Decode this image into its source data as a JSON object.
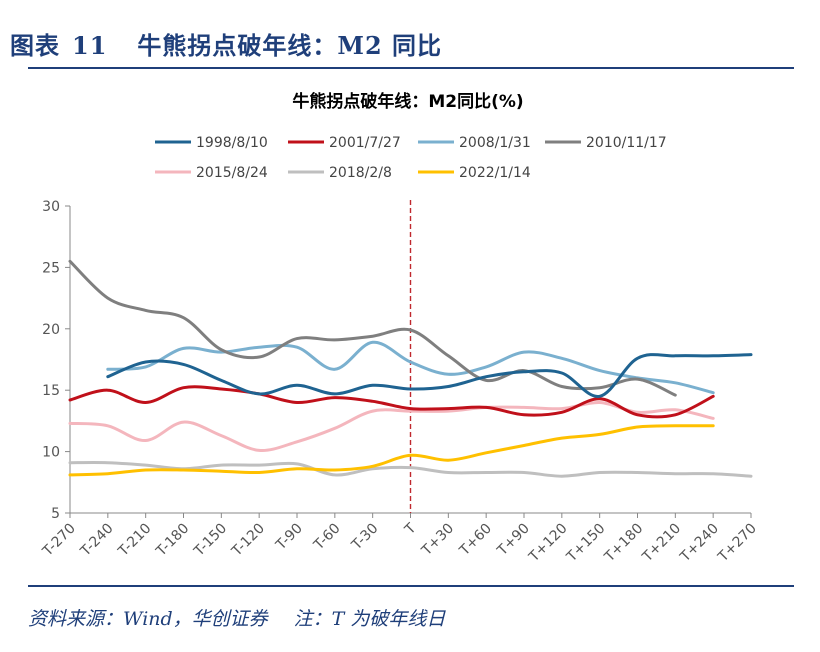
{
  "figure": {
    "label": "图表",
    "number": "11",
    "title": "牛熊拐点破年线：M2 同比"
  },
  "footer": {
    "source": "资料来源：Wind，华创证券",
    "note": "注：T 为破年线日"
  },
  "colors": {
    "accent": "#1f3f7a",
    "marker_line": "#c0282e"
  },
  "chart_data": {
    "type": "line",
    "title": "牛熊拐点破年线：M2同比(%)",
    "categories": [
      "T-270",
      "T-240",
      "T-210",
      "T-180",
      "T-150",
      "T-120",
      "T-90",
      "T-60",
      "T-30",
      "T",
      "T+30",
      "T+60",
      "T+90",
      "T+120",
      "T+150",
      "T+180",
      "T+210",
      "T+240",
      "T+270"
    ],
    "ylim": [
      5,
      30
    ],
    "yticks": [
      5,
      10,
      15,
      20,
      25,
      30
    ],
    "vertical_marker": "T",
    "legend_position": "top",
    "grid": false,
    "series": [
      {
        "name": "1998/8/10",
        "color": "#1f6391",
        "values": [
          null,
          16.1,
          17.3,
          17.1,
          15.8,
          14.7,
          15.4,
          14.7,
          15.4,
          15.1,
          15.3,
          16.1,
          16.5,
          16.4,
          14.5,
          17.6,
          17.8,
          17.8,
          17.9
        ]
      },
      {
        "name": "2001/7/27",
        "color": "#c0101a",
        "values": [
          14.2,
          15.0,
          14.0,
          15.2,
          15.1,
          14.7,
          14.0,
          14.4,
          14.1,
          13.5,
          13.5,
          13.6,
          13.0,
          13.2,
          14.3,
          13.0,
          13.0,
          14.5,
          null
        ]
      },
      {
        "name": "2008/1/31",
        "color": "#7ab0cf",
        "values": [
          null,
          16.7,
          16.9,
          18.4,
          18.1,
          18.5,
          18.5,
          16.7,
          18.9,
          17.3,
          16.3,
          16.9,
          18.1,
          17.6,
          16.6,
          16.0,
          15.6,
          14.8,
          null
        ]
      },
      {
        "name": "2010/11/17",
        "color": "#7f7f7f",
        "values": [
          25.5,
          22.5,
          21.5,
          20.9,
          18.3,
          17.7,
          19.2,
          19.1,
          19.4,
          19.9,
          17.8,
          15.8,
          16.6,
          15.3,
          15.2,
          15.9,
          14.6,
          null,
          null
        ]
      },
      {
        "name": "2015/8/24",
        "color": "#f4b6bd",
        "values": [
          12.3,
          12.1,
          10.9,
          12.4,
          11.3,
          10.1,
          10.8,
          11.9,
          13.3,
          13.3,
          13.3,
          13.6,
          13.6,
          13.5,
          14.0,
          13.2,
          13.4,
          12.7,
          null
        ]
      },
      {
        "name": "2018/2/8",
        "color": "#bfbfbf",
        "values": [
          9.1,
          9.1,
          8.9,
          8.6,
          8.9,
          8.9,
          9.0,
          8.1,
          8.6,
          8.7,
          8.3,
          8.3,
          8.3,
          8.0,
          8.3,
          8.3,
          8.2,
          8.2,
          8.0
        ]
      },
      {
        "name": "2022/1/14",
        "color": "#ffc000",
        "values": [
          8.1,
          8.2,
          8.5,
          8.5,
          8.4,
          8.3,
          8.6,
          8.5,
          8.8,
          9.7,
          9.3,
          9.9,
          10.5,
          11.1,
          11.4,
          12.0,
          12.1,
          12.1,
          null
        ]
      }
    ]
  }
}
